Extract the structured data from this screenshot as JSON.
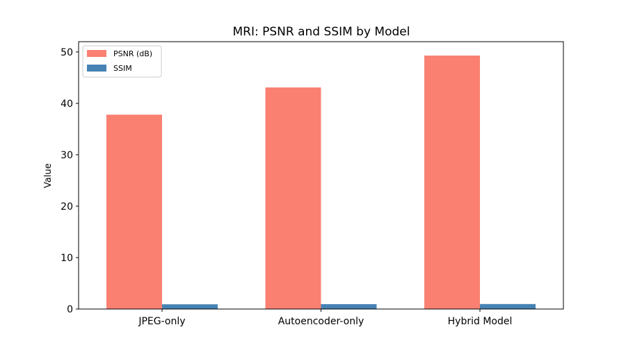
{
  "chart_data": {
    "type": "bar",
    "title": "MRI: PSNR and SSIM by Model",
    "xlabel": "",
    "ylabel": "Value",
    "categories": [
      "JPEG-only",
      "Autoencoder-only",
      "Hybrid Model"
    ],
    "series": [
      {
        "name": "PSNR (dB)",
        "values": [
          37.8,
          43.1,
          49.3
        ],
        "color": "#fa8072"
      },
      {
        "name": "SSIM",
        "values": [
          0.92,
          0.95,
          0.97
        ],
        "color": "#4682b4"
      }
    ],
    "ylim": [
      0,
      52
    ],
    "yticks": [
      0,
      10,
      20,
      30,
      40,
      50
    ],
    "legend_position": "top-left",
    "grid": false
  }
}
